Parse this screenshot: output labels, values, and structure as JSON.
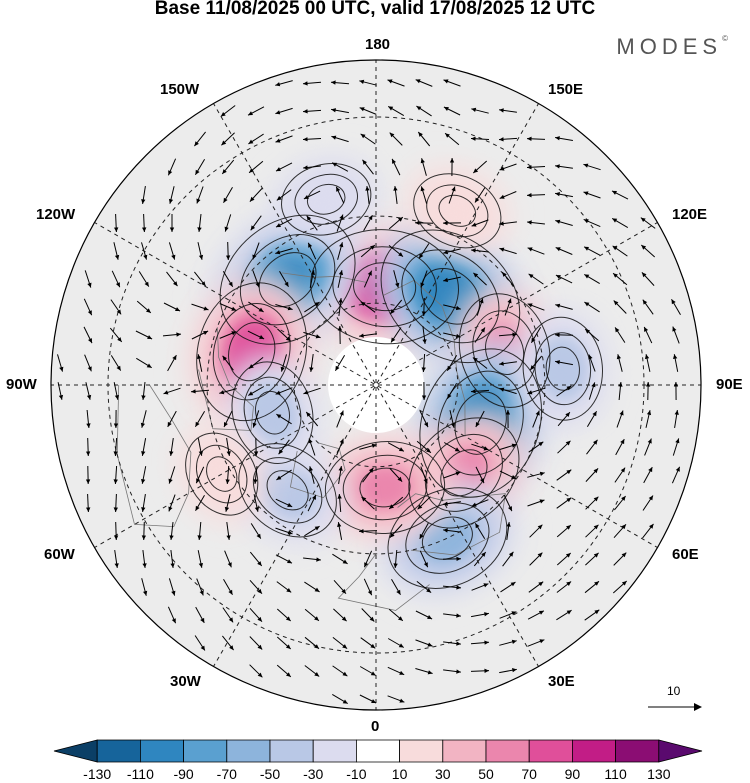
{
  "title": "Base 11/08/2025 00 UTC, valid 17/08/2025 12 UTC",
  "brand": "MODES",
  "brand_mark": "©",
  "longitude_labels": {
    "top": "180",
    "top_left": "150W",
    "top_right": "150E",
    "upper_left": "120W",
    "upper_right": "120E",
    "left": "90W",
    "right": "90E",
    "lower_left": "60W",
    "lower_right": "60E",
    "bottom_left": "30W",
    "bottom_right": "30E",
    "bottom": "0"
  },
  "wind_reference": {
    "value": "10"
  },
  "colorbar": {
    "ticks": [
      "-130",
      "-110",
      "-90",
      "-70",
      "-50",
      "-30",
      "-10",
      "10",
      "30",
      "50",
      "70",
      "90",
      "110",
      "130"
    ],
    "colors": [
      "#0b3f66",
      "#16649b",
      "#2f86c0",
      "#5aa0d0",
      "#8db4dc",
      "#b9c8e6",
      "#dcdcef",
      "#ffffff",
      "#f8dcdc",
      "#f2b4c3",
      "#eb86ad",
      "#e04f9a",
      "#c21d86",
      "#8b0d73",
      "#5a0a6e"
    ]
  },
  "anomalies": [
    {
      "lon": 175,
      "colat": 24,
      "value": 95
    },
    {
      "lon": 140,
      "colat": 28,
      "value": -100
    },
    {
      "lon": -140,
      "colat": 33,
      "value": -95
    },
    {
      "lon": -105,
      "colat": 31,
      "value": 85
    },
    {
      "lon": 105,
      "colat": 32,
      "value": 55
    },
    {
      "lon": 70,
      "colat": 27,
      "value": -100
    },
    {
      "lon": 45,
      "colat": 30,
      "value": 65
    },
    {
      "lon": 25,
      "colat": 40,
      "value": -65
    },
    {
      "lon": 5,
      "colat": 25,
      "value": 60
    },
    {
      "lon": -40,
      "colat": 33,
      "value": -45
    },
    {
      "lon": -75,
      "colat": 26,
      "value": -40
    },
    {
      "lon": 95,
      "colat": 44,
      "value": -40
    },
    {
      "lon": 155,
      "colat": 45,
      "value": 25
    },
    {
      "lon": -165,
      "colat": 45,
      "value": -25
    },
    {
      "lon": -60,
      "colat": 42,
      "value": 20
    }
  ]
}
